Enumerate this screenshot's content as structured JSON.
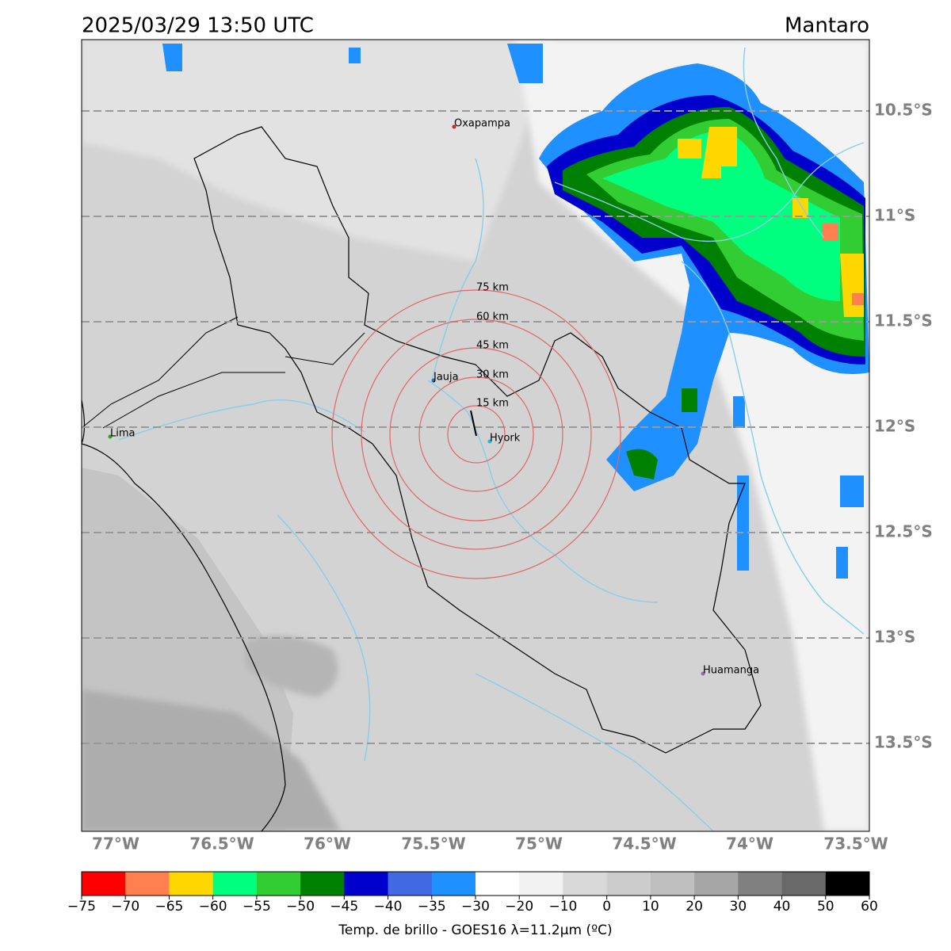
{
  "header": {
    "title": "2025/03/29 13:50 UTC",
    "region": "Mantaro"
  },
  "map": {
    "lat_labels": [
      "10.5°S",
      "11°S",
      "11.5°S",
      "12°S",
      "12.5°S",
      "13°S",
      "13.5°S"
    ],
    "lon_labels": [
      "77°W",
      "76.5°W",
      "76°W",
      "75.5°W",
      "75°W",
      "74.5°W",
      "74°W",
      "73.5°W"
    ],
    "rings": [
      "15 km",
      "30 km",
      "45 km",
      "60 km",
      "75 km"
    ],
    "places": [
      {
        "name": "Oxapampa",
        "color": "#d62728"
      },
      {
        "name": "Jauja",
        "color": "#1f77b4"
      },
      {
        "name": "Lima",
        "color": "#2ca02c"
      },
      {
        "name": "Hyork",
        "color": "#17becf"
      },
      {
        "name": "Huamanga",
        "color": "#9467bd"
      }
    ]
  },
  "colorbar": {
    "colors": [
      "#ff0000",
      "#ff7f50",
      "#ffd700",
      "#00ff7f",
      "#32cd32",
      "#008000",
      "#0000cd",
      "#4169e1",
      "#1e90ff",
      "#ffffff",
      "#f2f2f2",
      "#d9d9d9",
      "#cccccc",
      "#bfbfbf",
      "#a6a6a6",
      "#808080",
      "#696969",
      "#000000"
    ],
    "ticks": [
      "−75",
      "−70",
      "−65",
      "−60",
      "−55",
      "−50",
      "−45",
      "−40",
      "−35",
      "−30",
      "−20",
      "−10",
      "0",
      "10",
      "20",
      "30",
      "40",
      "50",
      "60"
    ],
    "label": "Temp. de brillo - GOES16 λ=11.2μm (ºC)"
  }
}
